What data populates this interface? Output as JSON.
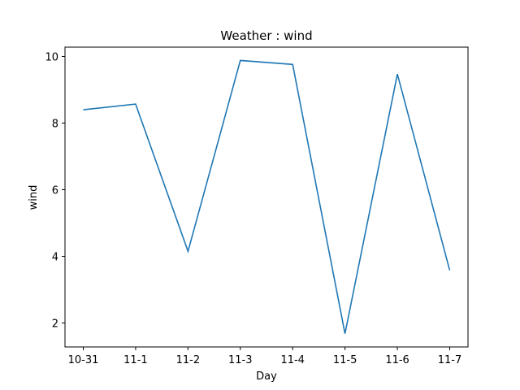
{
  "chart_data": {
    "type": "line",
    "title": "Weather : wind",
    "xlabel": "Day",
    "ylabel": "wind",
    "categories": [
      "10-31",
      "11-1",
      "11-2",
      "11-3",
      "11-4",
      "11-5",
      "11-6",
      "11-7"
    ],
    "series": [
      {
        "values": [
          8.4,
          8.57,
          4.15,
          9.88,
          9.76,
          1.68,
          9.47,
          3.58
        ],
        "color": "#1f77b4"
      }
    ],
    "ylim": [
      1.28,
      10.28
    ],
    "yticks": [
      2,
      4,
      6,
      8,
      10
    ],
    "grid": false,
    "legend": "none"
  }
}
